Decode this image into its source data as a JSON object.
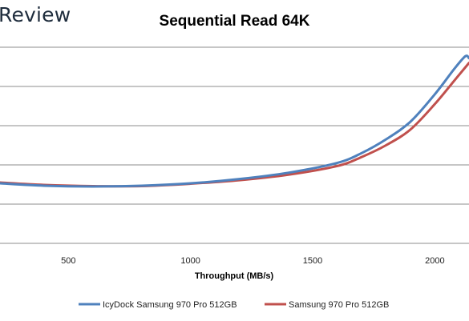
{
  "header": {
    "brand": "Review"
  },
  "chart_data": {
    "type": "line",
    "title": "Sequential Read 64K",
    "xlabel": "Throughput (MB/s)",
    "ylabel": "",
    "xlim": [
      220,
      2140
    ],
    "ylim": [
      0,
      5
    ],
    "x_ticks": [
      500,
      1000,
      1500,
      2000
    ],
    "y_gridlines": [
      0,
      1,
      2,
      3,
      4,
      5
    ],
    "grid": "horizontal",
    "legend_position": "bottom",
    "series": [
      {
        "name": "IcyDock Samsung 970 Pro 512GB",
        "color": "#4f81bd",
        "x": [
          220,
          400,
          600,
          800,
          1000,
          1200,
          1400,
          1600,
          1700,
          1800,
          1900,
          2000,
          2080,
          2125,
          2140
        ],
        "y": [
          1.53,
          1.47,
          1.45,
          1.47,
          1.53,
          1.64,
          1.8,
          2.05,
          2.3,
          2.65,
          3.1,
          3.8,
          4.45,
          4.77,
          4.72
        ]
      },
      {
        "name": "Samsung 970 Pro 512GB",
        "color": "#c0504d",
        "x": [
          220,
          400,
          600,
          800,
          1000,
          1200,
          1400,
          1600,
          1700,
          1800,
          1900,
          2000,
          2080,
          2140
        ],
        "y": [
          1.55,
          1.49,
          1.46,
          1.46,
          1.52,
          1.61,
          1.75,
          1.97,
          2.2,
          2.5,
          2.9,
          3.55,
          4.15,
          4.6
        ]
      }
    ]
  }
}
